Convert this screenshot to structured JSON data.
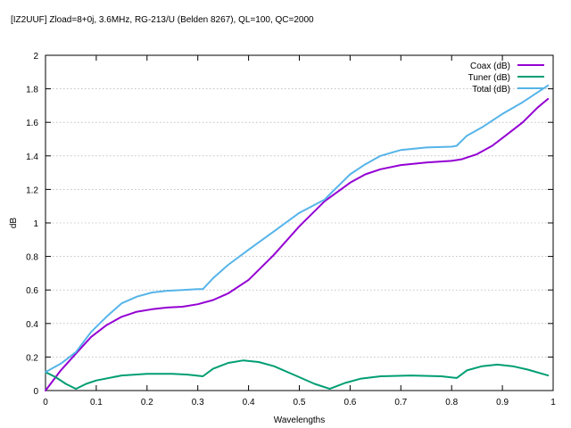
{
  "chart_data": {
    "type": "line",
    "title": "[IZ2UUF] Zload=8+0j, 3.6MHz, RG-213/U (Belden 8267), QL=100, QC=2000",
    "xlabel": "Wavelengths",
    "ylabel": "dB",
    "xlim": [
      0,
      1
    ],
    "ylim": [
      0,
      2
    ],
    "x_ticks": [
      0,
      0.1,
      0.2,
      0.3,
      0.4,
      0.5,
      0.6,
      0.7,
      0.8,
      0.9,
      1
    ],
    "x_tick_labels": [
      "0",
      "0.1",
      "0.2",
      "0.3",
      "0.4",
      "0.5",
      "0.6",
      "0.7",
      "0.8",
      "0.9",
      "1"
    ],
    "y_ticks": [
      0,
      0.2,
      0.4,
      0.6,
      0.8,
      1,
      1.2,
      1.4,
      1.6,
      1.8,
      2
    ],
    "y_tick_labels": [
      "0",
      "0.2",
      "0.4",
      "0.6",
      "0.8",
      "1",
      "1.2",
      "1.4",
      "1.6",
      "1.8",
      "2"
    ],
    "grid": true,
    "legend_position": "top-right",
    "series": [
      {
        "name": "Coax (dB)",
        "color": "#9400d3",
        "x": [
          0,
          0.03,
          0.06,
          0.09,
          0.12,
          0.15,
          0.18,
          0.21,
          0.24,
          0.27,
          0.3,
          0.33,
          0.36,
          0.4,
          0.45,
          0.5,
          0.55,
          0.6,
          0.63,
          0.66,
          0.7,
          0.75,
          0.8,
          0.82,
          0.85,
          0.88,
          0.91,
          0.94,
          0.97,
          0.99
        ],
        "values": [
          0,
          0.12,
          0.22,
          0.32,
          0.39,
          0.44,
          0.47,
          0.485,
          0.495,
          0.5,
          0.515,
          0.54,
          0.58,
          0.66,
          0.81,
          0.98,
          1.13,
          1.24,
          1.29,
          1.32,
          1.345,
          1.36,
          1.37,
          1.38,
          1.41,
          1.46,
          1.53,
          1.6,
          1.69,
          1.74
        ]
      },
      {
        "name": "Tuner (dB)",
        "color": "#009e73",
        "x": [
          0,
          0.02,
          0.04,
          0.06,
          0.08,
          0.1,
          0.15,
          0.2,
          0.25,
          0.28,
          0.31,
          0.33,
          0.36,
          0.39,
          0.42,
          0.45,
          0.5,
          0.53,
          0.56,
          0.59,
          0.62,
          0.66,
          0.72,
          0.78,
          0.81,
          0.83,
          0.86,
          0.89,
          0.92,
          0.95,
          0.99
        ],
        "values": [
          0.11,
          0.08,
          0.04,
          0.01,
          0.04,
          0.06,
          0.09,
          0.1,
          0.1,
          0.095,
          0.085,
          0.13,
          0.165,
          0.18,
          0.17,
          0.145,
          0.08,
          0.04,
          0.01,
          0.045,
          0.07,
          0.085,
          0.09,
          0.085,
          0.075,
          0.12,
          0.145,
          0.155,
          0.145,
          0.125,
          0.09
        ]
      },
      {
        "name": "Total (dB)",
        "color": "#56b4e9",
        "x": [
          0,
          0.03,
          0.06,
          0.09,
          0.12,
          0.15,
          0.18,
          0.21,
          0.24,
          0.27,
          0.3,
          0.31,
          0.33,
          0.36,
          0.4,
          0.45,
          0.5,
          0.55,
          0.56,
          0.6,
          0.63,
          0.66,
          0.7,
          0.75,
          0.8,
          0.81,
          0.83,
          0.86,
          0.9,
          0.94,
          0.99
        ],
        "values": [
          0.11,
          0.16,
          0.23,
          0.35,
          0.44,
          0.52,
          0.56,
          0.585,
          0.595,
          0.6,
          0.605,
          0.605,
          0.67,
          0.75,
          0.84,
          0.95,
          1.06,
          1.14,
          1.17,
          1.29,
          1.35,
          1.4,
          1.435,
          1.45,
          1.455,
          1.46,
          1.52,
          1.57,
          1.65,
          1.72,
          1.82
        ]
      }
    ]
  }
}
